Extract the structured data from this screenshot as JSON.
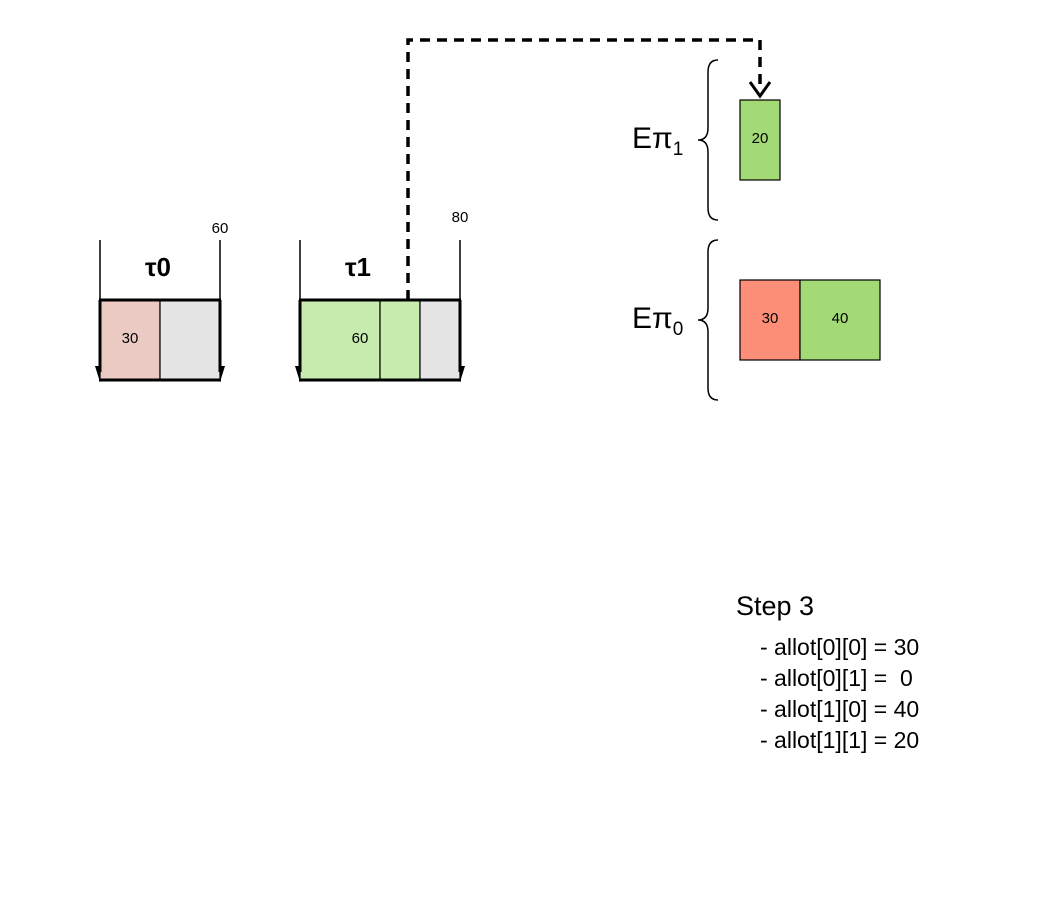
{
  "tasks": [
    {
      "label": "τ0",
      "deadline_label": "60",
      "segment_labels": [
        "30"
      ],
      "colors": {
        "first": "#EBCAC3",
        "rest": "#E5E5E5"
      }
    },
    {
      "label": "τ1",
      "deadline_label": "80",
      "segment_labels": [
        "60"
      ],
      "colors": {
        "first": "#C8EBB0",
        "second": "#C8EBB0",
        "rest": "#E5E5E5"
      }
    }
  ],
  "processors": [
    {
      "label": "Επ",
      "subscript": "1",
      "blocks": [
        {
          "label": "20",
          "color": "#A3DA76"
        }
      ]
    },
    {
      "label": "Επ",
      "subscript": "0",
      "blocks": [
        {
          "label": "30",
          "color": "#FC8E78"
        },
        {
          "label": "40",
          "color": "#A3DA76"
        }
      ]
    }
  ],
  "step": {
    "title": "Step 3",
    "allocations": [
      "- allot[0][0] = 30",
      "- allot[0][1] =  0",
      "- allot[1][0] = 40",
      "- allot[1][1] = 20"
    ]
  }
}
